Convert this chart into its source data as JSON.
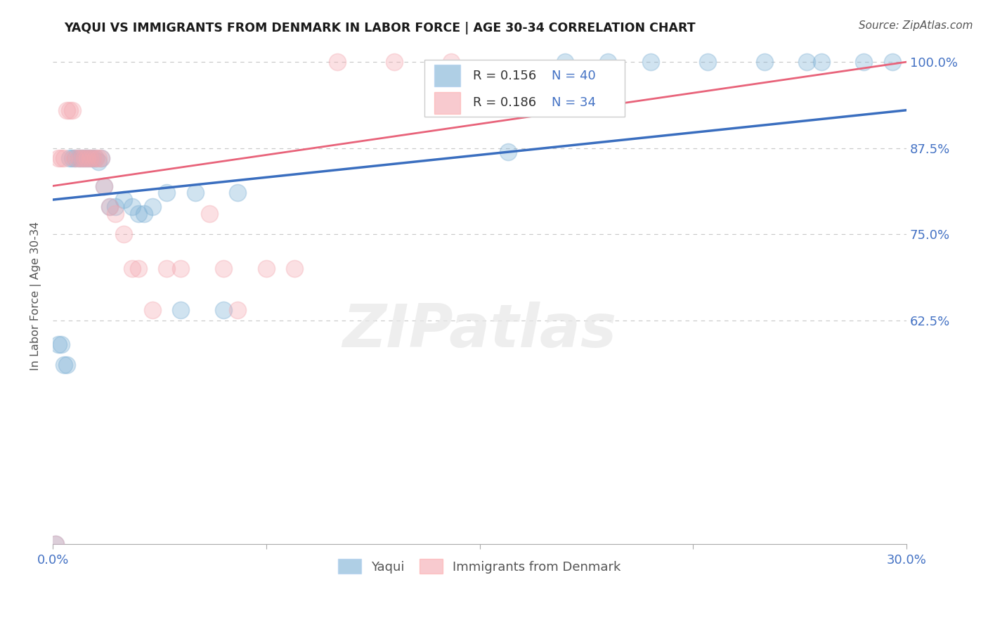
{
  "title": "YAQUI VS IMMIGRANTS FROM DENMARK IN LABOR FORCE | AGE 30-34 CORRELATION CHART",
  "source": "Source: ZipAtlas.com",
  "ylabel": "In Labor Force | Age 30-34",
  "xmin": 0.0,
  "xmax": 0.3,
  "ymin": 0.3,
  "ymax": 1.02,
  "xticks": [
    0.0,
    0.075,
    0.15,
    0.225,
    0.3
  ],
  "xtick_labels": [
    "0.0%",
    "",
    "",
    "",
    "30.0%"
  ],
  "yticks": [
    0.625,
    0.75,
    0.875,
    1.0
  ],
  "ytick_right_labels": [
    "62.5%",
    "75.0%",
    "87.5%",
    "100.0%"
  ],
  "blue_color": "#7BAFD4",
  "pink_color": "#F4A8B0",
  "blue_trend_color": "#3A6EBF",
  "pink_trend_color": "#E8637A",
  "legend_blue_R": "R = 0.156",
  "legend_blue_N": "N = 40",
  "legend_pink_R": "R = 0.186",
  "legend_pink_N": "N = 34",
  "watermark": "ZIPatlas",
  "accent_blue": "#4472C4",
  "blue_x": [
    0.001,
    0.002,
    0.003,
    0.004,
    0.005,
    0.006,
    0.007,
    0.008,
    0.009,
    0.01,
    0.011,
    0.012,
    0.013,
    0.014,
    0.015,
    0.016,
    0.017,
    0.018,
    0.02,
    0.022,
    0.025,
    0.028,
    0.03,
    0.032,
    0.035,
    0.04,
    0.045,
    0.05,
    0.06,
    0.065,
    0.16,
    0.18,
    0.195,
    0.21,
    0.23,
    0.25,
    0.265,
    0.27,
    0.285,
    0.295
  ],
  "blue_y": [
    0.3,
    0.59,
    0.59,
    0.56,
    0.56,
    0.86,
    0.86,
    0.86,
    0.86,
    0.86,
    0.86,
    0.86,
    0.86,
    0.86,
    0.86,
    0.855,
    0.86,
    0.82,
    0.79,
    0.79,
    0.8,
    0.79,
    0.78,
    0.78,
    0.79,
    0.81,
    0.64,
    0.81,
    0.64,
    0.81,
    0.87,
    1.0,
    1.0,
    1.0,
    1.0,
    1.0,
    1.0,
    1.0,
    1.0,
    1.0
  ],
  "pink_x": [
    0.001,
    0.002,
    0.003,
    0.004,
    0.005,
    0.006,
    0.007,
    0.008,
    0.009,
    0.01,
    0.011,
    0.012,
    0.013,
    0.014,
    0.015,
    0.016,
    0.017,
    0.018,
    0.02,
    0.022,
    0.025,
    0.028,
    0.03,
    0.035,
    0.04,
    0.045,
    0.055,
    0.06,
    0.065,
    0.075,
    0.085,
    0.1,
    0.12,
    0.14
  ],
  "pink_y": [
    0.3,
    0.86,
    0.86,
    0.86,
    0.93,
    0.93,
    0.93,
    0.86,
    0.86,
    0.86,
    0.86,
    0.86,
    0.86,
    0.86,
    0.86,
    0.86,
    0.86,
    0.82,
    0.79,
    0.78,
    0.75,
    0.7,
    0.7,
    0.64,
    0.7,
    0.7,
    0.78,
    0.7,
    0.64,
    0.7,
    0.7,
    1.0,
    1.0,
    1.0
  ],
  "grid_color": "#C8C8C8",
  "background_color": "#FFFFFF",
  "title_color": "#1A1A1A"
}
